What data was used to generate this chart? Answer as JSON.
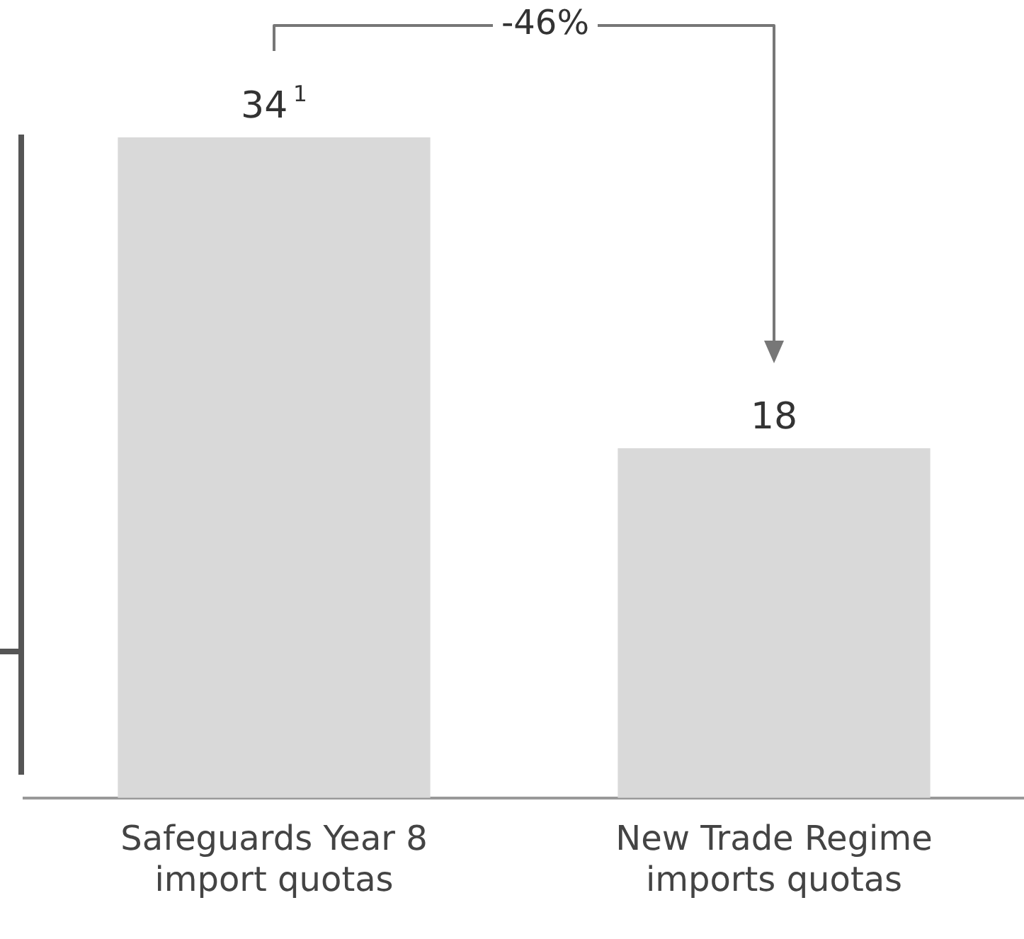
{
  "chart_data": {
    "type": "bar",
    "categories": [
      "Safeguards Year 8 import quotas",
      "New Trade Regime imports quotas"
    ],
    "values": [
      34,
      18
    ],
    "value_labels": [
      "34$^{1}$",
      "18"
    ],
    "color": "#d9d9d9",
    "annotations": [
      "-46%"
    ]
  }
}
